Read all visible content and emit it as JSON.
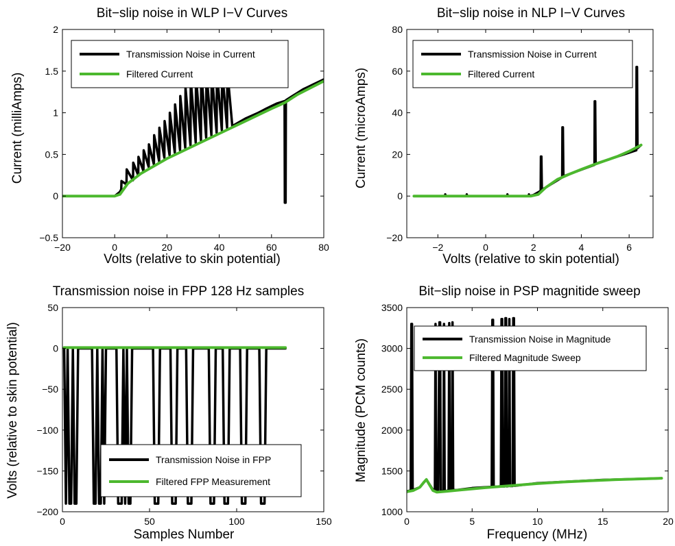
{
  "colors": {
    "noise": "#000000",
    "filtered": "#4cb82e"
  },
  "chart_data": [
    {
      "type": "line",
      "title": "Bit−slip noise in WLP I−V Curves",
      "xlabel": "Volts (relative to skin potential)",
      "ylabel": "Current (milliAmps)",
      "xlim": [
        -20,
        80
      ],
      "ylim": [
        -0.5,
        2
      ],
      "xticks": [
        -20,
        0,
        20,
        40,
        60,
        80
      ],
      "xtick_labels": [
        "−20",
        "0",
        "20",
        "40",
        "60",
        "80"
      ],
      "yticks": [
        -0.5,
        0,
        0.5,
        1,
        1.5,
        2
      ],
      "ytick_labels": [
        "−0.5",
        "0",
        "0.5",
        "1",
        "1.5",
        "2"
      ],
      "legend": "top-left",
      "series": [
        {
          "name": "Transmission Noise in Current",
          "color": "#000000",
          "x": [
            -20,
            0,
            2,
            2.5,
            2.6,
            4.5,
            4.6,
            7,
            7.1,
            9,
            9.1,
            11,
            11.1,
            13,
            13.1,
            15,
            15.1,
            17,
            17.1,
            19,
            19.1,
            21,
            21.1,
            23,
            23.1,
            25,
            25.1,
            27,
            27.1,
            29,
            29.1,
            31,
            31.1,
            33,
            33.1,
            35,
            35.1,
            37,
            37.1,
            39,
            39.1,
            41,
            41.1,
            43,
            43.1,
            45,
            50,
            55,
            58,
            60,
            62,
            64,
            65,
            65.1,
            65.4,
            65.5,
            66,
            68,
            70,
            72,
            74,
            76,
            78,
            80
          ],
          "y": [
            0,
            0,
            0.05,
            0.08,
            0.18,
            0.14,
            0.32,
            0.19,
            0.4,
            0.25,
            0.47,
            0.3,
            0.55,
            0.35,
            0.62,
            0.38,
            0.73,
            0.42,
            0.82,
            0.46,
            0.9,
            0.49,
            1.0,
            0.52,
            1.1,
            0.55,
            1.2,
            0.58,
            1.3,
            0.61,
            1.4,
            0.64,
            1.45,
            0.67,
            1.5,
            0.7,
            1.5,
            0.73,
            1.5,
            0.76,
            1.5,
            0.79,
            1.5,
            0.82,
            1.5,
            0.84,
            0.93,
            1.0,
            1.05,
            1.08,
            1.11,
            1.13,
            1.14,
            -0.08,
            -0.08,
            1.15,
            1.16,
            1.2,
            1.24,
            1.28,
            1.31,
            1.34,
            1.37,
            1.4
          ]
        },
        {
          "name": "Filtered Current",
          "color": "#4cb82e",
          "x": [
            -20,
            0,
            2,
            5,
            10,
            20,
            30,
            40,
            50,
            60,
            65,
            70,
            75,
            80
          ],
          "y": [
            0,
            0,
            0.02,
            0.15,
            0.27,
            0.45,
            0.6,
            0.75,
            0.9,
            1.05,
            1.12,
            1.22,
            1.3,
            1.38
          ]
        }
      ]
    },
    {
      "type": "line",
      "title": "Bit−slip noise in NLP I−V Curves",
      "xlabel": "Volts (relative to skin potential)",
      "ylabel": "Current (microAmps)",
      "xlim": [
        -3.3,
        7
      ],
      "ylim": [
        -20,
        80
      ],
      "xticks": [
        -2,
        0,
        2,
        4,
        6
      ],
      "xtick_labels": [
        "−2",
        "0",
        "2",
        "4",
        "6"
      ],
      "yticks": [
        -20,
        0,
        20,
        40,
        60,
        80
      ],
      "ytick_labels": [
        "−20",
        "0",
        "20",
        "40",
        "60",
        "80"
      ],
      "legend": "top-left",
      "series": [
        {
          "name": "Transmission Noise in Current",
          "color": "#000000",
          "x": [
            -3,
            -1.7,
            -1.69,
            -1.68,
            -0.8,
            -0.79,
            -0.78,
            0.9,
            0.91,
            0.92,
            1.8,
            1.81,
            1.82,
            2.0,
            2.3,
            2.31,
            2.33,
            2.35,
            3.2,
            3.21,
            3.23,
            3.25,
            4.55,
            4.56,
            4.58,
            4.6,
            6.3,
            6.31,
            6.33,
            6.35,
            6.5
          ],
          "y": [
            0,
            0,
            0.8,
            0,
            0,
            0.8,
            0,
            0,
            0.8,
            0,
            0,
            0.8,
            0,
            0.5,
            2.5,
            19,
            19,
            3,
            9,
            33,
            33,
            9.5,
            15,
            45.5,
            45.5,
            15.5,
            22,
            62,
            62,
            23,
            24.5
          ]
        },
        {
          "name": "Filtered Current",
          "color": "#4cb82e",
          "x": [
            -3,
            1.9,
            2.2,
            2.5,
            3,
            3.5,
            4,
            4.5,
            5,
            5.5,
            6,
            6.5
          ],
          "y": [
            0,
            0,
            0.8,
            4,
            8,
            10.5,
            12.8,
            15,
            17,
            19,
            21.5,
            24.5
          ]
        }
      ]
    },
    {
      "type": "line",
      "title": "Transmission noise in FPP 128 Hz samples",
      "xlabel": "Samples Number",
      "ylabel": "Volts (relative to skin potential)",
      "xlim": [
        0,
        150
      ],
      "ylim": [
        -200,
        50
      ],
      "xticks": [
        0,
        50,
        100,
        150
      ],
      "xtick_labels": [
        "0",
        "50",
        "100",
        "150"
      ],
      "yticks": [
        -200,
        -150,
        -100,
        -50,
        0,
        50
      ],
      "ytick_labels": [
        "−200",
        "−150",
        "−100",
        "−50",
        "0",
        "50"
      ],
      "legend": "bottom-right",
      "series": [
        {
          "name": "Transmission Noise in FPP",
          "color": "#000000",
          "x": [
            1,
            2,
            3,
            4,
            5,
            6,
            7,
            8,
            9,
            17,
            18,
            19,
            20,
            21,
            22,
            23,
            24,
            25,
            31,
            32,
            33,
            34,
            35,
            36,
            37,
            38,
            39,
            40,
            41,
            52,
            53,
            54,
            55,
            56,
            62,
            63,
            64,
            65,
            66,
            71,
            72,
            73,
            74,
            75,
            84,
            85,
            86,
            87,
            88,
            92,
            93,
            94,
            95,
            96,
            102,
            103,
            104,
            105,
            106,
            113,
            114,
            115,
            116,
            117,
            128
          ],
          "y": [
            0,
            -190,
            0,
            -190,
            -190,
            0,
            -190,
            -190,
            0,
            0,
            -190,
            -190,
            0,
            -190,
            -190,
            0,
            -190,
            0,
            0,
            -190,
            -190,
            -190,
            0,
            -190,
            0,
            -190,
            -190,
            0,
            0,
            0,
            -190,
            -190,
            -190,
            0,
            0,
            -190,
            -190,
            -190,
            0,
            0,
            -190,
            -190,
            -190,
            0,
            0,
            -190,
            -190,
            -190,
            0,
            0,
            -190,
            -190,
            -190,
            0,
            0,
            -190,
            -190,
            -190,
            0,
            0,
            -190,
            -190,
            -190,
            0,
            0
          ]
        },
        {
          "name": "Filtered FPP Measurement",
          "color": "#4cb82e",
          "x": [
            1,
            128
          ],
          "y": [
            1,
            1
          ]
        }
      ]
    },
    {
      "type": "line",
      "title": "Bit−slip noise in PSP magnitide sweep",
      "xlabel": "Frequency (MHz)",
      "ylabel": "Magnitude (PCM counts)",
      "xlim": [
        0,
        20
      ],
      "ylim": [
        1000,
        3500
      ],
      "xticks": [
        0,
        5,
        10,
        15,
        20
      ],
      "xtick_labels": [
        "0",
        "5",
        "10",
        "15",
        "20"
      ],
      "yticks": [
        1000,
        1500,
        2000,
        2500,
        3000,
        3500
      ],
      "ytick_labels": [
        "1000",
        "1500",
        "2000",
        "2500",
        "3000",
        "3500"
      ],
      "legend": "top-right",
      "series": [
        {
          "name": "Transmission Noise in Magnitude",
          "color": "#000000",
          "x": [
            0,
            0.3,
            0.35,
            0.4,
            0.45,
            1.0,
            1.5,
            2.0,
            2.15,
            2.2,
            2.25,
            2.4,
            2.5,
            2.55,
            2.6,
            2.8,
            2.85,
            2.9,
            3.0,
            3.2,
            3.25,
            3.3,
            3.45,
            3.5,
            3.55,
            3.8,
            5.0,
            6.5,
            6.55,
            6.6,
            6.65,
            7.2,
            7.25,
            7.3,
            7.35,
            7.5,
            7.55,
            7.6,
            7.65,
            7.8,
            7.85,
            7.9,
            8.1,
            8.15,
            8.2,
            8.25,
            10,
            15,
            19.5
          ],
          "y": [
            1250,
            1260,
            3300,
            3300,
            1265,
            1300,
            1395,
            1270,
            1260,
            3300,
            1255,
            1255,
            3320,
            3320,
            1255,
            1255,
            3300,
            1255,
            1255,
            1260,
            3310,
            1260,
            1260,
            3320,
            1265,
            1265,
            1290,
            1305,
            3350,
            3350,
            1305,
            1310,
            3360,
            3360,
            1310,
            1310,
            3370,
            3370,
            1310,
            1315,
            3360,
            1315,
            1315,
            3370,
            3370,
            1318,
            1350,
            1390,
            1410
          ]
        },
        {
          "name": "Filtered Magnitude Sweep",
          "color": "#4cb82e",
          "x": [
            0,
            0.5,
            1.0,
            1.3,
            1.5,
            1.7,
            2.0,
            2.3,
            3,
            4,
            6,
            8,
            10,
            12,
            14,
            16,
            18,
            19.5
          ],
          "y": [
            1245,
            1260,
            1300,
            1360,
            1395,
            1340,
            1260,
            1240,
            1250,
            1265,
            1295,
            1320,
            1345,
            1365,
            1380,
            1393,
            1403,
            1410
          ]
        }
      ]
    }
  ]
}
